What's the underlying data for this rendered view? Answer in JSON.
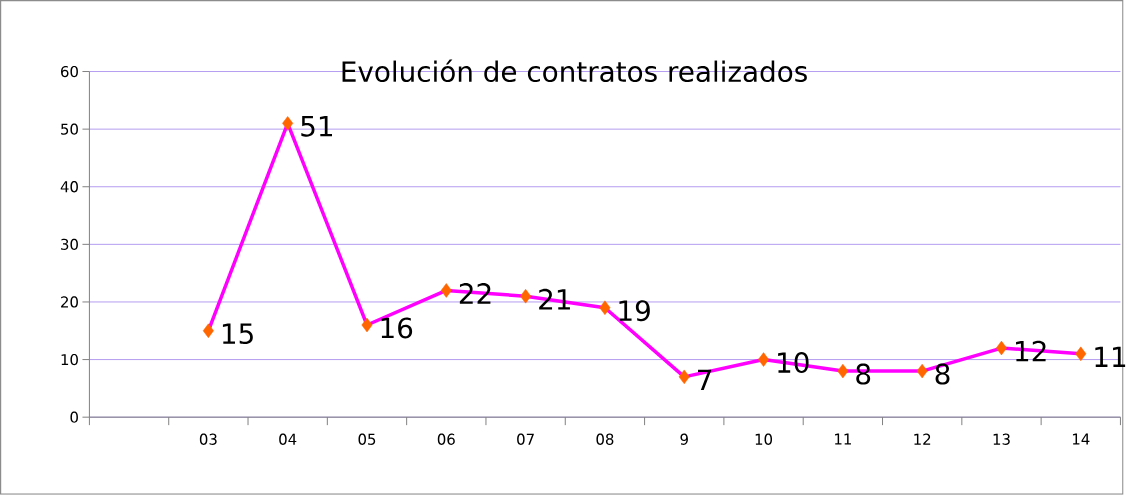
{
  "chart_data": {
    "type": "line",
    "title": "Evolución de contratos realizados",
    "categories": [
      null,
      "03",
      "04",
      "05",
      "06",
      "07",
      "08",
      "9",
      "10",
      "11",
      "12",
      "13",
      "14"
    ],
    "values": [
      null,
      15,
      51,
      16,
      22,
      21,
      19,
      7,
      10,
      8,
      8,
      12,
      11
    ],
    "color": "#ff00ff",
    "marker": "diamond",
    "line_style": "solid",
    "ylim": [
      0,
      60
    ],
    "yticks": [
      0,
      10,
      20,
      30,
      40,
      50,
      60
    ],
    "grid": "y",
    "data_labels": true
  }
}
